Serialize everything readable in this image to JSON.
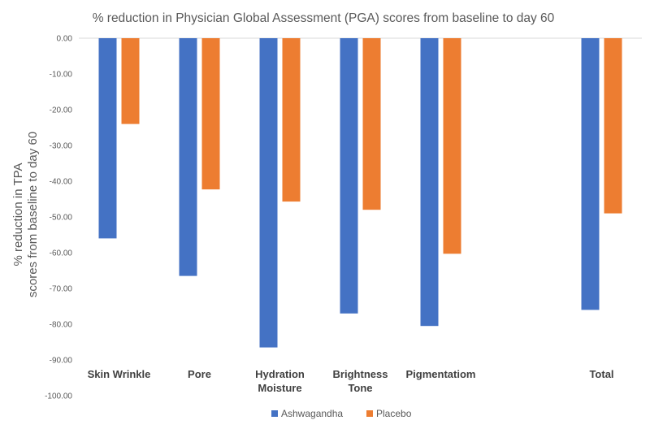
{
  "chart_data": {
    "type": "bar",
    "title": "% reduction in Physician Global Assessment (PGA) scores from baseline to day 60",
    "ylabel_lines": [
      "% reduction in TPA",
      "scores from baseline to day 60"
    ],
    "xlabel": "",
    "categories": [
      [
        "Skin Wrinkle"
      ],
      [
        "Pore"
      ],
      [
        "Hydration",
        "Moisture"
      ],
      [
        "Brightness",
        "Tone"
      ],
      [
        "Pigmentatiom"
      ],
      [],
      [
        "Total"
      ]
    ],
    "series": [
      {
        "name": "Ashwagandha",
        "color": "#4472C4",
        "values": [
          -56.0,
          -66.5,
          -86.5,
          -77.0,
          -80.5,
          null,
          -76.0
        ]
      },
      {
        "name": "Placebo",
        "color": "#ED7D31",
        "values": [
          -24.0,
          -42.3,
          -45.7,
          -48.0,
          -60.3,
          null,
          -49.0
        ]
      }
    ],
    "ylim": [
      -100,
      0
    ],
    "yticks": [
      "0.00",
      "-10.00",
      "-20.00",
      "-30.00",
      "-40.00",
      "-50.00",
      "-60.00",
      "-70.00",
      "-80.00",
      "-90.00",
      "-100.00"
    ],
    "ytick_values": [
      0,
      -10,
      -20,
      -30,
      -40,
      -50,
      -60,
      -70,
      -80,
      -90,
      -100
    ],
    "grid": false,
    "legend": "bottom"
  }
}
